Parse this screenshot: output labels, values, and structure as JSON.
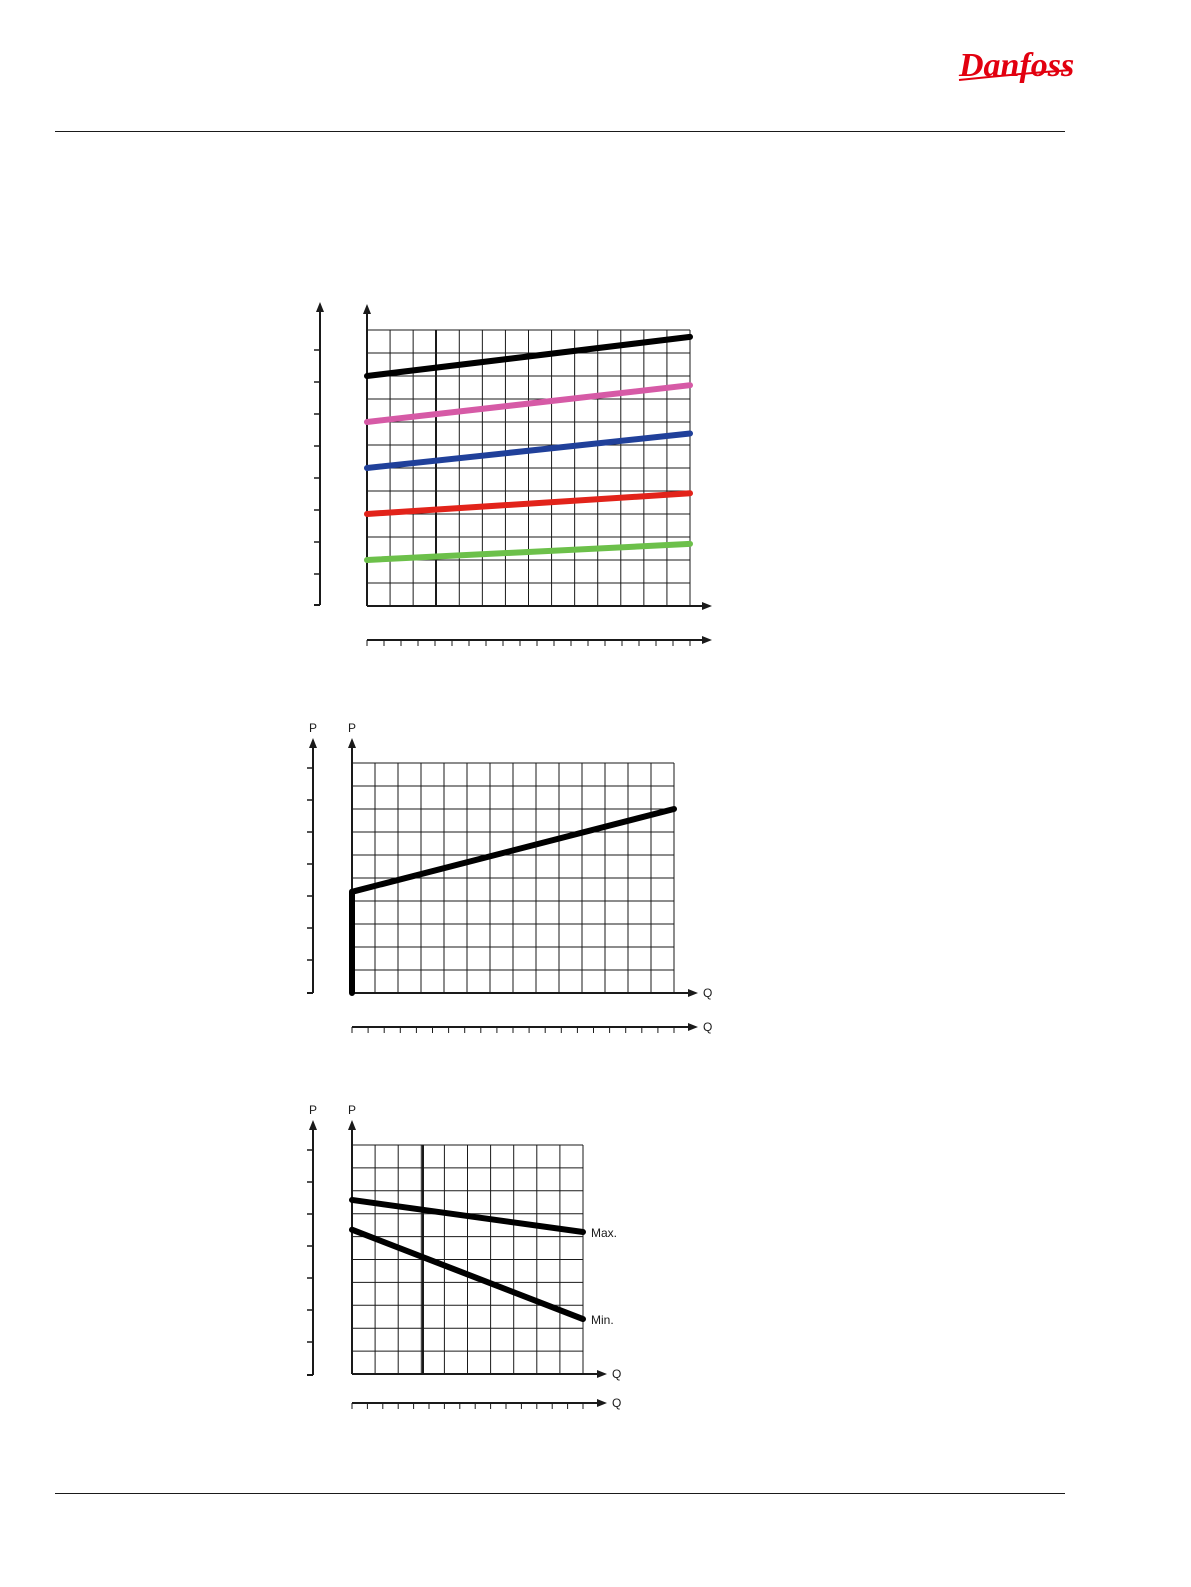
{
  "brand": {
    "name": "Danfoss",
    "color": "#e2000f"
  },
  "chart_data": [
    {
      "type": "line",
      "title": "",
      "xlabel": "",
      "ylabel": "",
      "x2label": "",
      "y2label": "",
      "x": [
        0,
        14
      ],
      "xlim": [
        0,
        14
      ],
      "ylim": [
        0,
        12
      ],
      "grid": true,
      "series": [
        {
          "values": [
            10.0,
            11.7
          ],
          "color": "#000000"
        },
        {
          "values": [
            8.0,
            9.6
          ],
          "color": "#d65aa6"
        },
        {
          "values": [
            6.0,
            7.5
          ],
          "color": "#20409a"
        },
        {
          "values": [
            4.0,
            4.9
          ],
          "color": "#e2231a"
        },
        {
          "values": [
            2.0,
            2.7
          ],
          "color": "#6cc04a"
        }
      ]
    },
    {
      "type": "line",
      "title": "",
      "xlabel": "Q",
      "ylabel": "P",
      "x2label": "Q",
      "y2label": "P",
      "x": [
        0,
        0,
        14
      ],
      "xlim": [
        0,
        14
      ],
      "ylim": [
        0,
        10
      ],
      "grid": true,
      "series": [
        {
          "values": [
            0,
            4.4,
            8.0
          ],
          "color": "#000000"
        }
      ]
    },
    {
      "type": "line",
      "title": "",
      "xlabel": "Q",
      "ylabel": "P",
      "x2label": "Q",
      "y2label": "P",
      "x": [
        0,
        10
      ],
      "xlim": [
        0,
        10
      ],
      "ylim": [
        0,
        10
      ],
      "grid": true,
      "series": [
        {
          "name": "Max.",
          "values": [
            7.6,
            6.2
          ],
          "color": "#000000"
        },
        {
          "name": "Min.",
          "values": [
            6.3,
            2.4
          ],
          "color": "#000000"
        }
      ]
    }
  ]
}
